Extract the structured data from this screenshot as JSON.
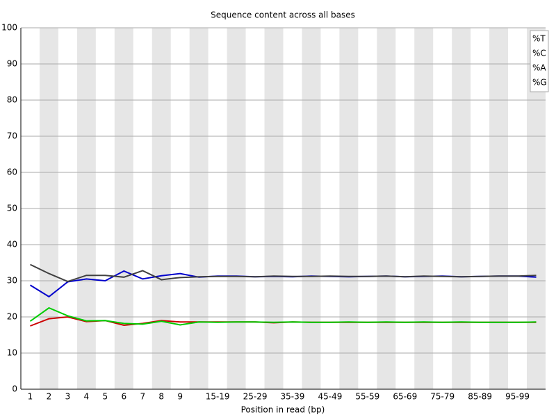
{
  "chart_data": {
    "type": "line",
    "title": "Sequence content across all bases",
    "xlabel": "Position in read (bp)",
    "categories": [
      "1",
      "2",
      "3",
      "4",
      "5",
      "6",
      "7",
      "8",
      "9",
      null,
      "15-19",
      null,
      "25-29",
      null,
      "35-39",
      null,
      "45-49",
      null,
      "55-59",
      null,
      "65-69",
      null,
      "75-79",
      null,
      "85-89",
      null,
      "95-99",
      null
    ],
    "series": [
      {
        "name": "%T",
        "color": "#cc0000",
        "values": [
          17.5,
          19.5,
          20.0,
          18.7,
          19.0,
          17.7,
          18.2,
          19.0,
          18.6,
          18.6,
          18.6,
          18.6,
          18.6,
          18.4,
          18.6,
          18.5,
          18.5,
          18.5,
          18.5,
          18.5,
          18.5,
          18.5,
          18.5,
          18.5,
          18.5,
          18.5,
          18.5,
          18.5
        ]
      },
      {
        "name": "%C",
        "color": "#0000cc",
        "values": [
          28.8,
          25.6,
          29.7,
          30.5,
          30.0,
          32.7,
          30.5,
          31.4,
          32.0,
          31.0,
          31.3,
          31.3,
          31.1,
          31.2,
          31.1,
          31.3,
          31.2,
          31.1,
          31.2,
          31.3,
          31.1,
          31.2,
          31.3,
          31.1,
          31.2,
          31.3,
          31.3,
          31.0
        ]
      },
      {
        "name": "%A",
        "color": "#00cc00",
        "values": [
          18.8,
          22.5,
          20.3,
          18.9,
          19.0,
          18.2,
          18.0,
          18.8,
          17.8,
          18.6,
          18.5,
          18.6,
          18.6,
          18.5,
          18.6,
          18.5,
          18.5,
          18.6,
          18.5,
          18.6,
          18.5,
          18.6,
          18.5,
          18.6,
          18.5,
          18.5,
          18.5,
          18.6
        ]
      },
      {
        "name": "%G",
        "color": "#404040",
        "values": [
          34.5,
          32.0,
          29.8,
          31.5,
          31.5,
          31.0,
          32.8,
          30.3,
          30.9,
          31.1,
          31.2,
          31.2,
          31.1,
          31.3,
          31.2,
          31.2,
          31.3,
          31.2,
          31.2,
          31.3,
          31.1,
          31.3,
          31.2,
          31.1,
          31.2,
          31.3,
          31.3,
          31.5
        ]
      }
    ],
    "ylim": [
      0,
      100
    ],
    "yticks": [
      0,
      10,
      20,
      30,
      40,
      50,
      60,
      70,
      80,
      90,
      100
    ],
    "grid": true,
    "legend": "top-right"
  }
}
